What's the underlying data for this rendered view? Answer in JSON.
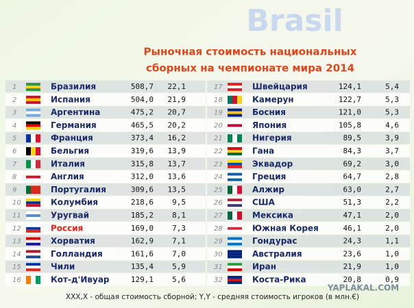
{
  "watermark": "Brasil",
  "title": [
    "Рыночная  стоимость национальных",
    "сборных  на чемпионате мира 2014"
  ],
  "table": {
    "left": [
      [
        "1",
        "Бразилия",
        "508,7",
        "22,1"
      ],
      [
        "2",
        "Испания",
        "504,0",
        "21,9"
      ],
      [
        "3",
        "Аргентина",
        "475,2",
        "20,7"
      ],
      [
        "4",
        "Германия",
        "465,5",
        "20,2"
      ],
      [
        "5",
        "Франция",
        "373,4",
        "16,2"
      ],
      [
        "6",
        "Бельгия",
        "319,6",
        "13,9"
      ],
      [
        "7",
        "Италия",
        "315,8",
        "13,7"
      ],
      [
        "8",
        "Англия",
        "312,0",
        "13,6"
      ],
      [
        "9",
        "Португалия",
        "309,6",
        "13,5"
      ],
      [
        "10",
        "Колумбия",
        "218,6",
        "9,5"
      ],
      [
        "11",
        "Уругвай",
        "185,2",
        "8,1"
      ],
      [
        "12",
        "Россия",
        "169,0",
        "7,3"
      ],
      [
        "13",
        "Хорватия",
        "162,9",
        "7,1"
      ],
      [
        "14",
        "Голландия",
        "161,6",
        "7,0"
      ],
      [
        "15",
        "Чили",
        "135,4",
        "5,9"
      ],
      [
        "16",
        "Кот-д'Ивуар",
        "129,1",
        "5,6"
      ]
    ],
    "right": [
      [
        "17",
        "Швейцария",
        "124,1",
        "5,4"
      ],
      [
        "18",
        "Камерун",
        "122,7",
        "5,3"
      ],
      [
        "19",
        "Босния",
        "121,0",
        "5,3"
      ],
      [
        "20",
        "Япония",
        "105,8",
        "4,6"
      ],
      [
        "21",
        "Нигерия",
        "89,5",
        "3,9"
      ],
      [
        "22",
        "Гана",
        "84,3",
        "3,7"
      ],
      [
        "23",
        "Эквадор",
        "69,2",
        "3,0"
      ],
      [
        "24",
        "Греция",
        "64,7",
        "2,8"
      ],
      [
        "25",
        "Алжир",
        "63,0",
        "2,7"
      ],
      [
        "26",
        "США",
        "51,3",
        "2,2"
      ],
      [
        "27",
        "Мексика",
        "47,1",
        "2,0"
      ],
      [
        "28",
        "Южная Корея",
        "46,1",
        "2,0"
      ],
      [
        "29",
        "Гондурас",
        "24,3",
        "1,1"
      ],
      [
        "30",
        "Австралия",
        "23,6",
        "1,0"
      ],
      [
        "31",
        "Иран",
        "21,9",
        "1,0"
      ],
      [
        "32",
        "Коста-Рика",
        "20,8",
        "0,9"
      ]
    ]
  },
  "footnote": "XXX,X - общая стоимость сборной;  Y,Y - средняя стоимость игроков (в млн.€)",
  "site": "YAPLAKAL.COM"
}
